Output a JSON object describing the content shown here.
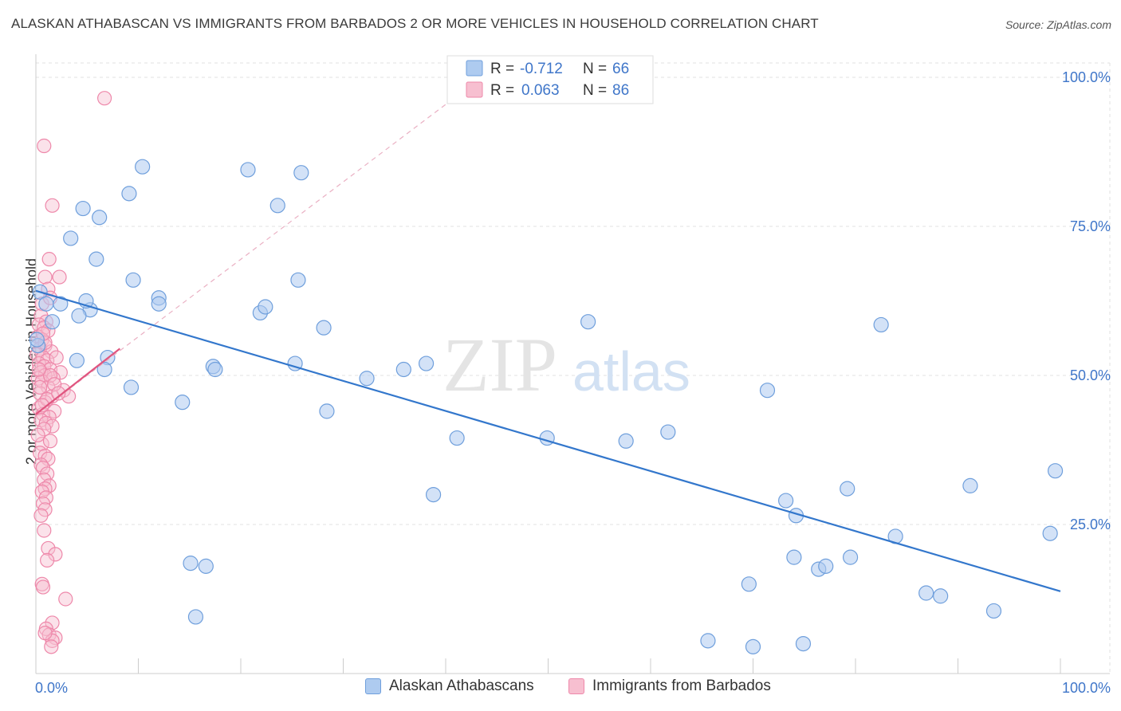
{
  "header": {
    "title": "ALASKAN ATHABASCAN VS IMMIGRANTS FROM BARBADOS 2 OR MORE VEHICLES IN HOUSEHOLD CORRELATION CHART",
    "source": "Source: ZipAtlas.com"
  },
  "watermark": {
    "zip": "ZIP",
    "atlas": "atlas"
  },
  "legend": {
    "row1": {
      "r_label": "R = ",
      "r_value": "-0.712",
      "n_label": "N = ",
      "n_value": "66"
    },
    "row2": {
      "r_label": "R = ",
      "r_value": "0.063",
      "n_label": "N = ",
      "n_value": "86"
    }
  },
  "bottom_legend": {
    "series1": "Alaskan Athabascans",
    "series2": "Immigrants from Barbados"
  },
  "colors": {
    "blue_fill": "#aecbf0",
    "blue_stroke": "#6f9fdc",
    "blue_line": "#3377cc",
    "pink_fill": "#f7bfd0",
    "pink_stroke": "#ee88aa",
    "pink_line": "#e0557f",
    "axis_text": "#3f76c9"
  },
  "chart_data": {
    "type": "scatter",
    "title": "ALASKAN ATHABASCAN VS IMMIGRANTS FROM BARBADOS 2 OR MORE VEHICLES IN HOUSEHOLD CORRELATION CHART",
    "xlabel": "",
    "ylabel": "2 or more Vehicles in Household",
    "xlim": [
      0,
      100
    ],
    "ylim": [
      0,
      100
    ],
    "x_tick_labels": [
      "0.0%",
      "100.0%"
    ],
    "y_tick_labels": [
      "100.0%",
      "75.0%",
      "50.0%",
      "25.0%"
    ],
    "y_ticks": [
      100,
      75,
      50,
      25
    ],
    "grid": true,
    "legend_position": "top-center",
    "series": [
      {
        "name": "Alaskan Athabascans",
        "r": -0.712,
        "n": 66,
        "trend": {
          "x": [
            0,
            100
          ],
          "y": [
            64.2,
            13.8
          ]
        },
        "points": [
          [
            0.4,
            64
          ],
          [
            0.2,
            55
          ],
          [
            1.6,
            59
          ],
          [
            1.0,
            62
          ],
          [
            3.4,
            73
          ],
          [
            4.6,
            78
          ],
          [
            6.2,
            76.5
          ],
          [
            5.9,
            69.5
          ],
          [
            5.3,
            61
          ],
          [
            4.2,
            60
          ],
          [
            2.4,
            62
          ],
          [
            4.0,
            52.5
          ],
          [
            7.0,
            53
          ],
          [
            6.7,
            51
          ],
          [
            9.1,
            80.5
          ],
          [
            10.4,
            85
          ],
          [
            9.3,
            48
          ],
          [
            9.5,
            66
          ],
          [
            12.0,
            63
          ],
          [
            12.0,
            62
          ],
          [
            14.3,
            45.5
          ],
          [
            15.1,
            18.5
          ],
          [
            16.6,
            18
          ],
          [
            15.6,
            9.5
          ],
          [
            17.3,
            51.5
          ],
          [
            17.5,
            51
          ],
          [
            20.7,
            84.5
          ],
          [
            21.9,
            60.5
          ],
          [
            22.4,
            61.5
          ],
          [
            23.6,
            78.5
          ],
          [
            25.6,
            66
          ],
          [
            25.9,
            84
          ],
          [
            25.3,
            52
          ],
          [
            28.1,
            58
          ],
          [
            28.4,
            44
          ],
          [
            32.3,
            49.5
          ],
          [
            35.9,
            51
          ],
          [
            38.1,
            52
          ],
          [
            38.8,
            30
          ],
          [
            41.1,
            39.5
          ],
          [
            49.9,
            39.5
          ],
          [
            53.9,
            59
          ],
          [
            57.6,
            39
          ],
          [
            61.7,
            40.5
          ],
          [
            65.6,
            5.5
          ],
          [
            69.6,
            15
          ],
          [
            70.0,
            4.5
          ],
          [
            71.4,
            47.5
          ],
          [
            73.2,
            29
          ],
          [
            74.2,
            26.5
          ],
          [
            74.0,
            19.5
          ],
          [
            74.9,
            5
          ],
          [
            76.4,
            17.5
          ],
          [
            77.1,
            18
          ],
          [
            79.2,
            31
          ],
          [
            79.5,
            19.5
          ],
          [
            82.5,
            58.5
          ],
          [
            83.9,
            23
          ],
          [
            86.9,
            13.5
          ],
          [
            88.3,
            13
          ],
          [
            91.2,
            31.5
          ],
          [
            93.5,
            10.5
          ],
          [
            99.5,
            34
          ],
          [
            99.0,
            23.5
          ],
          [
            0.1,
            56
          ],
          [
            4.9,
            62.5
          ]
        ]
      },
      {
        "name": "Immigrants from Barbados",
        "r": 0.063,
        "n": 86,
        "trend": {
          "x": [
            0,
            8.2
          ],
          "y": [
            43.5,
            54.5
          ]
        },
        "trend_extended": {
          "x": [
            0,
            43.5
          ],
          "y": [
            43.5,
            100
          ]
        },
        "points": [
          [
            6.7,
            96.5
          ],
          [
            0.8,
            88.5
          ],
          [
            1.6,
            78.5
          ],
          [
            1.3,
            69.5
          ],
          [
            0.9,
            66.5
          ],
          [
            2.3,
            66.5
          ],
          [
            1.2,
            64.5
          ],
          [
            0.6,
            62
          ],
          [
            1.4,
            63
          ],
          [
            0.5,
            60
          ],
          [
            1.0,
            59
          ],
          [
            0.3,
            58.5
          ],
          [
            0.8,
            58
          ],
          [
            1.2,
            57.5
          ],
          [
            0.2,
            56.5
          ],
          [
            0.6,
            56
          ],
          [
            0.9,
            55
          ],
          [
            0.4,
            54.5
          ],
          [
            1.5,
            54
          ],
          [
            0.1,
            53.5
          ],
          [
            0.7,
            53
          ],
          [
            1.1,
            52.5
          ],
          [
            0.3,
            52
          ],
          [
            0.8,
            51.5
          ],
          [
            1.4,
            51
          ],
          [
            0.5,
            50.5
          ],
          [
            2.4,
            50.5
          ],
          [
            0.9,
            50
          ],
          [
            0.2,
            49.5
          ],
          [
            1.7,
            49.5
          ],
          [
            0.6,
            49
          ],
          [
            2.7,
            47.5
          ],
          [
            1.2,
            48
          ],
          [
            3.2,
            46.5
          ],
          [
            0.4,
            47
          ],
          [
            1.6,
            46.5
          ],
          [
            0.9,
            45.5
          ],
          [
            0.3,
            44.5
          ],
          [
            1.8,
            44
          ],
          [
            0.7,
            43.5
          ],
          [
            1.3,
            43
          ],
          [
            0.5,
            42.5
          ],
          [
            1.0,
            42
          ],
          [
            1.6,
            41.5
          ],
          [
            0.8,
            41
          ],
          [
            0.6,
            38.5
          ],
          [
            0.4,
            37
          ],
          [
            0.9,
            36.5
          ],
          [
            1.2,
            36
          ],
          [
            0.5,
            35
          ],
          [
            0.7,
            34.5
          ],
          [
            1.1,
            33.5
          ],
          [
            0.8,
            32.5
          ],
          [
            1.3,
            31.5
          ],
          [
            0.9,
            31
          ],
          [
            0.6,
            30.5
          ],
          [
            1.0,
            29.5
          ],
          [
            0.7,
            28.5
          ],
          [
            0.9,
            27.5
          ],
          [
            0.5,
            26.5
          ],
          [
            0.8,
            24
          ],
          [
            1.2,
            21
          ],
          [
            1.9,
            20
          ],
          [
            1.1,
            19
          ],
          [
            0.6,
            15
          ],
          [
            0.7,
            14.5
          ],
          [
            2.9,
            12.5
          ],
          [
            1.6,
            8.5
          ],
          [
            1.0,
            7.5
          ],
          [
            1.3,
            6.5
          ],
          [
            1.9,
            6
          ],
          [
            1.6,
            5.5
          ],
          [
            1.5,
            4.5
          ],
          [
            0.9,
            6.8
          ],
          [
            1.4,
            50
          ],
          [
            0.3,
            51
          ],
          [
            2.0,
            53
          ],
          [
            1.1,
            46
          ],
          [
            0.6,
            45
          ],
          [
            1.8,
            48.5
          ],
          [
            0.2,
            40
          ],
          [
            1.4,
            39
          ],
          [
            0.9,
            55.5
          ],
          [
            0.4,
            48
          ],
          [
            2.2,
            47
          ],
          [
            0.7,
            57
          ]
        ]
      }
    ]
  }
}
